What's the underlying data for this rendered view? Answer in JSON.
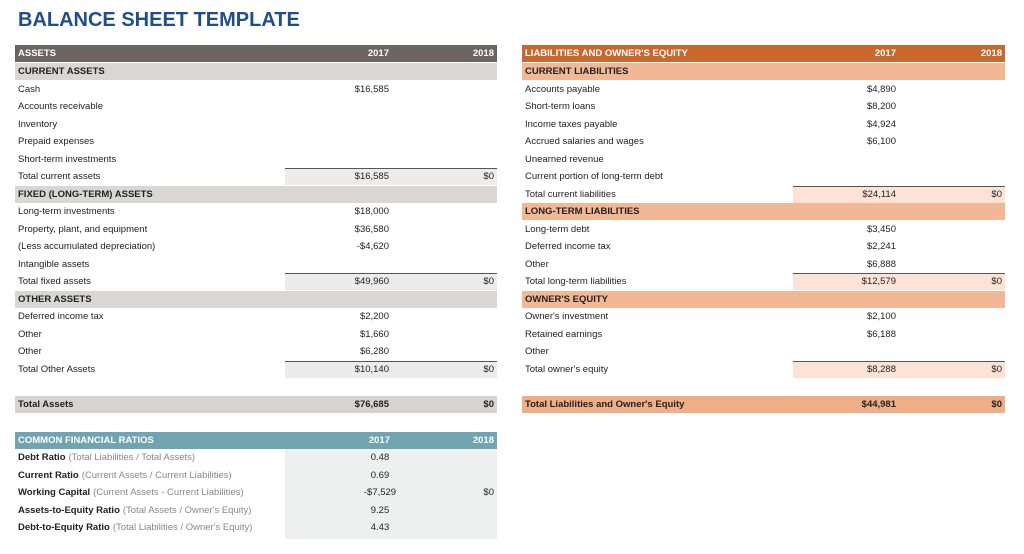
{
  "title": "BALANCE SHEET TEMPLATE",
  "assets": {
    "header": {
      "label": "ASSETS",
      "y2017": "2017",
      "y2018": "2018"
    },
    "rows": [
      {
        "section": "CURRENT ASSETS"
      },
      {
        "label": "Cash",
        "y2017": "$16,585"
      },
      {
        "label": "Accounts receivable"
      },
      {
        "label": "Inventory"
      },
      {
        "label": "Prepaid expenses"
      },
      {
        "label": "Short-term investments"
      },
      {
        "total": "Total current assets",
        "y2017": "$16,585",
        "y2018": "$0"
      },
      {
        "section": "FIXED (LONG-TERM) ASSETS"
      },
      {
        "label": "Long-term investments",
        "y2017": "$18,000"
      },
      {
        "label": "Property, plant, and equipment",
        "y2017": "$36,580"
      },
      {
        "label": "(Less accumulated depreciation)",
        "y2017": "-$4,620"
      },
      {
        "label": "Intangible assets"
      },
      {
        "total": "Total fixed assets",
        "y2017": "$49,960",
        "y2018": "$0"
      },
      {
        "section": "OTHER ASSETS"
      },
      {
        "label": "Deferred income tax",
        "y2017": "$2,200"
      },
      {
        "label": "Other",
        "y2017": "$1,660"
      },
      {
        "label": "Other",
        "y2017": "$6,280"
      },
      {
        "total": "Total Other Assets",
        "y2017": "$10,140",
        "y2018": "$0"
      }
    ],
    "grand_total": {
      "label": "Total Assets",
      "y2017": "$76,685",
      "y2018": "$0"
    }
  },
  "liabilities": {
    "header": {
      "label": "LIABILITIES AND OWNER'S EQUITY",
      "y2017": "2017",
      "y2018": "2018"
    },
    "rows": [
      {
        "section": "CURRENT LIABILITIES"
      },
      {
        "label": "Accounts payable",
        "y2017": "$4,890"
      },
      {
        "label": "Short-term loans",
        "y2017": "$8,200"
      },
      {
        "label": "Income taxes payable",
        "y2017": "$4,924"
      },
      {
        "label": "Accrued salaries and wages",
        "y2017": "$6,100"
      },
      {
        "label": "Unearned revenue"
      },
      {
        "label": "Current portion of long-term debt"
      },
      {
        "total": "Total current liabilities",
        "y2017": "$24,114",
        "y2018": "$0"
      },
      {
        "section": "LONG-TERM LIABILITIES"
      },
      {
        "label": "Long-term debt",
        "y2017": "$3,450"
      },
      {
        "label": "Deferred income tax",
        "y2017": "$2,241"
      },
      {
        "label": "Other",
        "y2017": "$6,888"
      },
      {
        "total": "Total long-term liabilities",
        "y2017": "$12,579",
        "y2018": "$0"
      },
      {
        "section": "OWNER'S EQUITY"
      },
      {
        "label": "Owner's investment",
        "y2017": "$2,100"
      },
      {
        "label": "Retained earnings",
        "y2017": "$6,188"
      },
      {
        "label": "Other"
      },
      {
        "total": "Total owner's equity",
        "y2017": "$8,288",
        "y2018": "$0"
      }
    ],
    "grand_total": {
      "label": "Total Liabilities and Owner's Equity",
      "y2017": "$44,981",
      "y2018": "$0"
    }
  },
  "ratios": {
    "header": {
      "label": "COMMON FINANCIAL RATIOS",
      "y2017": "2017",
      "y2018": "2018"
    },
    "rows": [
      {
        "name": "Debt Ratio",
        "formula": "(Total Liabilities / Total Assets)",
        "y2017": "0.48"
      },
      {
        "name": "Current Ratio",
        "formula": "(Current Assets / Current Liabilities)",
        "y2017": "0.69"
      },
      {
        "name": "Working Capital",
        "formula": "(Current Assets - Current Liabilities)",
        "y2017": "-$7,529",
        "y2018": "$0"
      },
      {
        "name": "Assets-to-Equity Ratio",
        "formula": "(Total Assets / Owner's Equity)",
        "y2017": "9.25"
      },
      {
        "name": "Debt-to-Equity Ratio",
        "formula": "(Total Liabilities / Owner's Equity)",
        "y2017": "4.43"
      }
    ]
  }
}
